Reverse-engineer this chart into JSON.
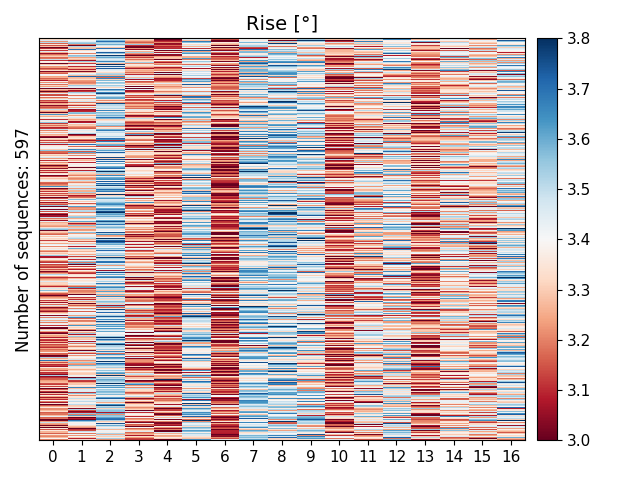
{
  "title": "Rise [°]",
  "ylabel": "Number of sequences: 597",
  "xlabel": "",
  "n_rows": 597,
  "n_cols": 17,
  "vmin": 3.0,
  "vmax": 3.8,
  "cmap": "RdBu",
  "colorbar_ticks": [
    3.0,
    3.1,
    3.2,
    3.3,
    3.4,
    3.5,
    3.6,
    3.7,
    3.8
  ],
  "xtick_labels": [
    "0",
    "1",
    "2",
    "3",
    "4",
    "5",
    "6",
    "7",
    "8",
    "9",
    "10",
    "11",
    "12",
    "13",
    "14",
    "15",
    "16"
  ],
  "seed": 42,
  "title_fontsize": 14,
  "label_fontsize": 12,
  "tick_fontsize": 11
}
